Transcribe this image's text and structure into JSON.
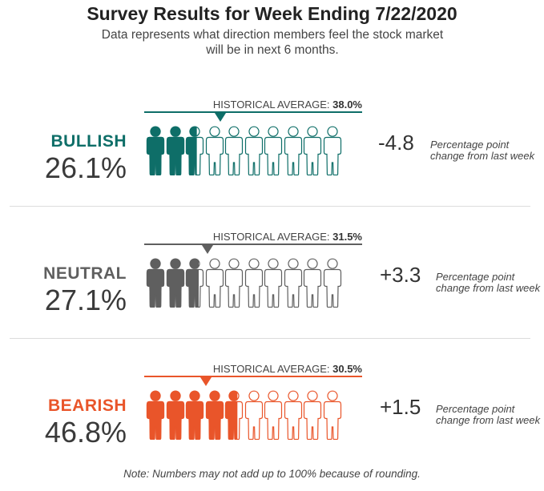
{
  "title": "Survey Results for Week Ending 7/22/2020",
  "subtitle": "Data represents what direction members feel the stock market will be in next 6 months.",
  "note": "Note: Numbers may not add up to 100% because of rounding.",
  "hist_prefix": "HISTORICAL AVERAGE: ",
  "icons_total": 10,
  "chart_data": [
    {
      "type": "isotype",
      "category": "BULLISH",
      "value_text": "26.1%",
      "value": 26.1,
      "historical_average_text": "38.0%",
      "historical_average": 38.0,
      "change_text": "-4.8",
      "change": -4.8,
      "change_note": "Percentage point change from last week",
      "color": "#0e6e68"
    },
    {
      "type": "isotype",
      "category": "NEUTRAL",
      "value_text": "27.1%",
      "value": 27.1,
      "historical_average_text": "31.5%",
      "historical_average": 31.5,
      "change_text": "+3.3",
      "change": 3.3,
      "change_note": "Percentage point change from last week",
      "color": "#5f5f5f"
    },
    {
      "type": "isotype",
      "category": "BEARISH",
      "value_text": "46.8%",
      "value": 46.8,
      "historical_average_text": "30.5%",
      "historical_average": 30.5,
      "change_text": "+1.5",
      "change": 1.5,
      "change_note": "Percentage point change from last week",
      "color": "#e9552a"
    }
  ]
}
